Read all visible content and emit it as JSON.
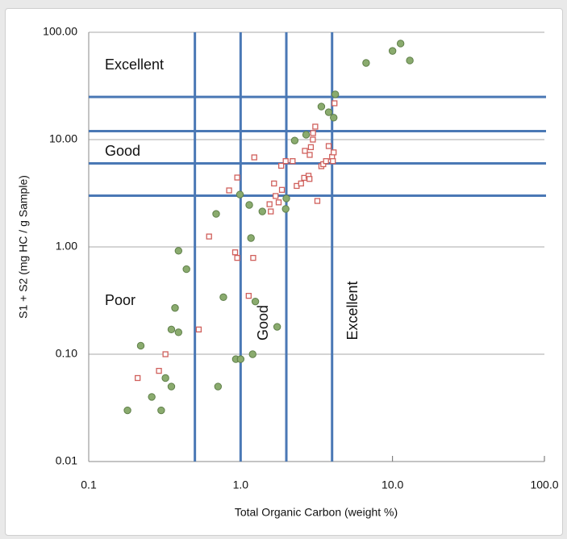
{
  "chart_data": {
    "type": "scatter",
    "xlabel": "Total Organic Carbon (weight %)",
    "ylabel": "S1 + S2 (mg HC / g Sample)",
    "xscale": "log",
    "yscale": "log",
    "xlim": [
      0.1,
      100
    ],
    "ylim": [
      0.01,
      100
    ],
    "xticks": [
      0.1,
      {
        "value": 1,
        "label": "1.0"
      },
      {
        "value": 10,
        "label": "10.0"
      },
      {
        "value": 100,
        "label": "100.0"
      }
    ],
    "yticks": [
      0.01,
      {
        "value": 0.1,
        "label": "0.10"
      },
      {
        "value": 1,
        "label": "1.00"
      },
      {
        "value": 10,
        "label": "10.00"
      },
      {
        "value": 100,
        "label": "100.00"
      }
    ],
    "grid": true,
    "x_thresholds": [
      0.5,
      1,
      2,
      4
    ],
    "y_thresholds": [
      3,
      6,
      12,
      25
    ],
    "threshold_color": "#4a78b5",
    "annotations": [
      "Excellent",
      "Good",
      "Poor",
      "Good",
      "Excellent"
    ],
    "series": [
      {
        "color": "#8aab6e",
        "marker": "circle",
        "x": [
          0.18,
          0.22,
          0.26,
          0.3,
          0.32,
          0.35,
          0.37,
          0.35,
          0.39,
          0.39,
          0.44,
          0.69,
          0.71,
          0.77,
          0.93,
          1.0,
          0.99,
          1.14,
          1.17,
          1.2,
          1.25,
          1.39,
          1.74,
          2.0,
          1.98,
          2.27,
          2.7,
          3.4,
          3.8,
          4.2,
          4.1,
          6.7,
          10,
          11.3,
          13
        ],
        "y": [
          0.03,
          0.12,
          0.04,
          0.03,
          0.06,
          0.05,
          0.27,
          0.17,
          0.16,
          0.92,
          0.62,
          2.03,
          0.05,
          0.34,
          0.09,
          0.09,
          3.08,
          2.46,
          1.21,
          0.1,
          0.31,
          2.14,
          0.18,
          2.83,
          2.26,
          9.8,
          11.1,
          20.3,
          18,
          26.4,
          16,
          51.8,
          67,
          78.5,
          54.6
        ]
      },
      {
        "color": "#d0605c",
        "marker": "square",
        "x": [
          0.21,
          0.29,
          0.32,
          0.53,
          0.62,
          0.84,
          0.95,
          0.92,
          0.95,
          1.13,
          1.21,
          1.23,
          1.55,
          1.58,
          1.66,
          1.7,
          1.78,
          1.87,
          1.85,
          1.98,
          2.2,
          2.34,
          2.5,
          2.62,
          2.8,
          2.84,
          2.65,
          2.9,
          2.99,
          3.0,
          3.1,
          3.2,
          2.85,
          3.4,
          3.5,
          3.65,
          3.8,
          4.0,
          4.05,
          4.1,
          4.15
        ],
        "y": [
          0.06,
          0.07,
          0.1,
          0.17,
          1.25,
          3.36,
          4.43,
          0.89,
          0.79,
          0.35,
          0.79,
          6.83,
          2.5,
          2.14,
          3.9,
          2.98,
          2.6,
          3.4,
          5.7,
          6.3,
          6.3,
          3.7,
          3.9,
          4.4,
          4.6,
          4.3,
          7.85,
          8.5,
          10,
          11.5,
          13.2,
          2.68,
          7.2,
          5.65,
          5.9,
          6.3,
          8.7,
          6.9,
          6.3,
          7.6,
          21.8
        ]
      }
    ]
  }
}
